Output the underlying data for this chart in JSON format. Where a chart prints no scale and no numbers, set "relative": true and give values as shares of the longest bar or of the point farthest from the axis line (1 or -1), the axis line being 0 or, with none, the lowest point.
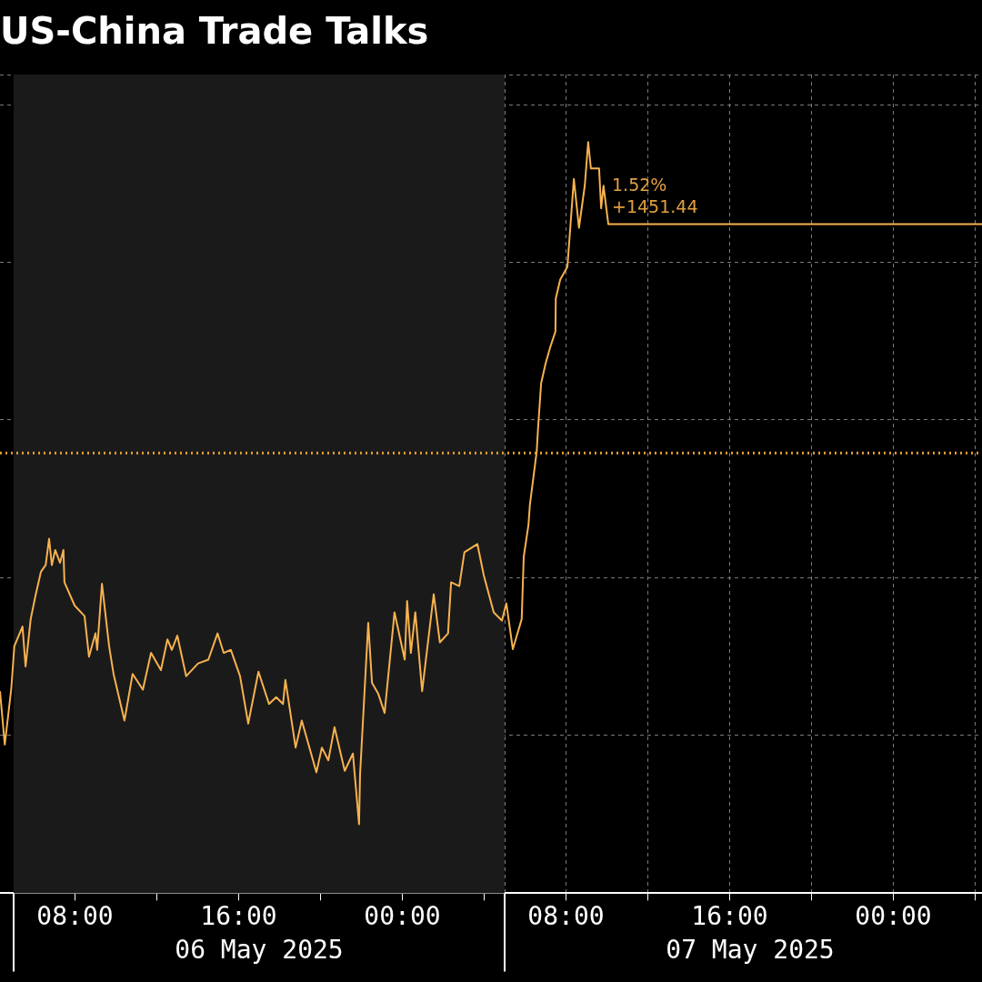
{
  "chart_data": {
    "type": "line",
    "title": "US-China Trade Talks",
    "relative": true,
    "grid": true,
    "legend": false,
    "marker": "none",
    "line_style": "solid",
    "xlim": [
      "2025-05-06T04:20",
      "2025-05-08T04:20"
    ],
    "xticks": [
      {
        "value": "2025-05-06T05:00",
        "label": null
      },
      {
        "value": "2025-05-06T08:00",
        "label": "08:00"
      },
      {
        "value": "2025-05-06T12:00",
        "label": null
      },
      {
        "value": "2025-05-06T16:00",
        "label": "16:00"
      },
      {
        "value": "2025-05-06T20:00",
        "label": null
      },
      {
        "value": "2025-05-07T00:00",
        "label": "00:00"
      },
      {
        "value": "2025-05-07T04:00",
        "label": null
      },
      {
        "value": "2025-05-07T05:00",
        "label": null
      },
      {
        "value": "2025-05-07T08:00",
        "label": "08:00"
      },
      {
        "value": "2025-05-07T12:00",
        "label": null
      },
      {
        "value": "2025-05-07T16:00",
        "label": "16:00"
      },
      {
        "value": "2025-05-07T20:00",
        "label": null
      },
      {
        "value": "2025-05-08T00:00",
        "label": "00:00"
      },
      {
        "value": "2025-05-08T04:00",
        "label": null
      }
    ],
    "series": [
      {
        "color": "#f7b24f",
        "x": [
          "2025-05-06T04:20",
          "2025-05-06T04:34",
          "2025-05-06T04:53",
          "2025-05-06T05:02",
          "2025-05-06T05:26",
          "2025-05-06T05:35",
          "2025-05-06T05:50",
          "2025-05-06T06:04",
          "2025-05-06T06:20",
          "2025-05-06T06:34",
          "2025-05-06T06:44",
          "2025-05-06T06:52",
          "2025-05-06T07:02",
          "2025-05-06T07:16",
          "2025-05-06T07:26",
          "2025-05-06T07:29",
          "2025-05-06T07:59",
          "2025-05-06T08:28",
          "2025-05-06T08:41",
          "2025-05-06T09:00",
          "2025-05-06T09:05",
          "2025-05-06T09:19",
          "2025-05-06T09:40",
          "2025-05-06T09:53",
          "2025-05-06T10:25",
          "2025-05-06T10:49",
          "2025-05-06T11:19",
          "2025-05-06T11:43",
          "2025-05-06T12:12",
          "2025-05-06T12:31",
          "2025-05-06T12:44",
          "2025-05-06T13:00",
          "2025-05-06T13:26",
          "2025-05-06T14:01",
          "2025-05-06T14:31",
          "2025-05-06T14:58",
          "2025-05-06T15:16",
          "2025-05-06T15:37",
          "2025-05-06T16:04",
          "2025-05-06T16:28",
          "2025-05-06T16:58",
          "2025-05-06T17:29",
          "2025-05-06T17:50",
          "2025-05-06T18:10",
          "2025-05-06T18:17",
          "2025-05-06T18:47",
          "2025-05-06T19:05",
          "2025-05-06T19:48",
          "2025-05-06T20:04",
          "2025-05-06T20:23",
          "2025-05-06T20:41",
          "2025-05-06T21:11",
          "2025-05-06T21:35",
          "2025-05-06T21:53",
          "2025-05-06T21:56",
          "2025-05-06T22:20",
          "2025-05-06T22:31",
          "2025-05-06T22:49",
          "2025-05-06T23:08",
          "2025-05-06T23:37",
          "2025-05-07T00:07",
          "2025-05-07T00:14",
          "2025-05-07T00:25",
          "2025-05-07T00:38",
          "2025-05-07T00:58",
          "2025-05-07T01:32",
          "2025-05-07T01:50",
          "2025-05-07T02:14",
          "2025-05-07T02:23",
          "2025-05-07T02:47",
          "2025-05-07T03:02",
          "2025-05-07T03:40",
          "2025-05-07T03:59",
          "2025-05-07T04:28",
          "2025-05-07T04:52",
          "2025-05-07T05:05",
          "2025-05-07T05:24",
          "2025-05-07T05:50",
          "2025-05-07T05:56",
          "2025-05-07T06:10",
          "2025-05-07T06:14",
          "2025-05-07T06:34",
          "2025-05-07T06:38",
          "2025-05-07T06:47",
          "2025-05-07T07:00",
          "2025-05-07T07:13",
          "2025-05-07T07:29",
          "2025-05-07T07:30",
          "2025-05-07T07:43",
          "2025-05-07T08:04",
          "2025-05-07T08:14",
          "2025-05-07T08:23",
          "2025-05-07T08:38",
          "2025-05-07T08:55",
          "2025-05-07T09:05",
          "2025-05-07T09:13",
          "2025-05-07T09:37",
          "2025-05-07T09:43",
          "2025-05-07T09:50",
          "2025-05-07T10:04",
          "2025-05-08T04:20"
        ],
        "values": [
          0.269,
          0.198,
          0.272,
          0.329,
          0.355,
          0.302,
          0.365,
          0.396,
          0.428,
          0.437,
          0.472,
          0.437,
          0.457,
          0.44,
          0.457,
          0.414,
          0.383,
          0.369,
          0.315,
          0.346,
          0.324,
          0.412,
          0.329,
          0.292,
          0.23,
          0.292,
          0.271,
          0.32,
          0.297,
          0.338,
          0.324,
          0.343,
          0.289,
          0.306,
          0.311,
          0.346,
          0.32,
          0.324,
          0.289,
          0.226,
          0.295,
          0.252,
          0.261,
          0.252,
          0.284,
          0.194,
          0.23,
          0.161,
          0.194,
          0.177,
          0.221,
          0.163,
          0.186,
          0.092,
          0.158,
          0.36,
          0.28,
          0.266,
          0.24,
          0.374,
          0.311,
          0.389,
          0.32,
          0.374,
          0.269,
          0.398,
          0.334,
          0.346,
          0.414,
          0.409,
          0.454,
          0.465,
          0.423,
          0.374,
          0.363,
          0.386,
          0.325,
          0.365,
          0.448,
          0.491,
          0.517,
          0.588,
          0.619,
          0.679,
          0.705,
          0.726,
          0.748,
          0.792,
          0.817,
          0.834,
          0.895,
          0.951,
          0.886,
          0.942,
          1.0,
          0.965,
          0.965,
          0.912,
          0.942,
          0.891,
          0.891
        ]
      }
    ],
    "bands": [
      {
        "axis": "x",
        "from": "2025-05-06T05:00",
        "to": "2025-05-07T05:00",
        "color": "#1a1a1a"
      }
    ],
    "ref_lines": [
      {
        "axis": "y",
        "value": 0.586,
        "color": "#e8a030",
        "line_style": "dotted"
      }
    ],
    "annotations": [
      {
        "text": "1.52%",
        "x": "2025-05-07T10:04",
        "y": 0.891
      },
      {
        "text": "+1451.44",
        "x": "2025-05-07T10:04",
        "y": 0.891
      },
      "06 May 2025",
      "07 May 2025"
    ]
  }
}
